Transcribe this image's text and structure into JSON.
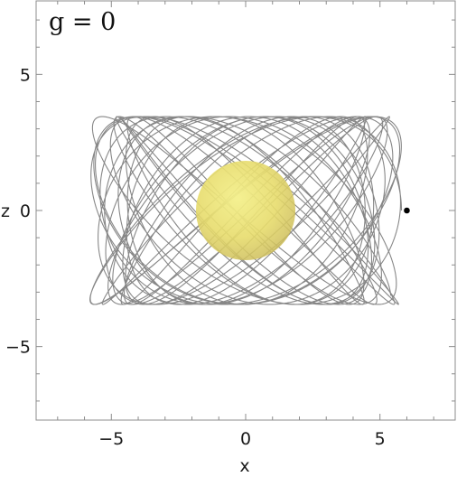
{
  "chart_data": {
    "type": "line",
    "title": "g = 0",
    "xlabel": "x",
    "ylabel": "z",
    "xlim": [
      -7.8,
      7.8
    ],
    "ylim": [
      -7.7,
      7.7
    ],
    "xticks": [
      -5,
      0,
      5
    ],
    "yticks": [
      -5,
      0,
      5
    ],
    "xtick_labels": [
      "−5",
      "0",
      "5"
    ],
    "ytick_labels": [
      "−5",
      "0",
      "5"
    ],
    "grid": false,
    "orbit": {
      "color": "#7a7a7a",
      "frequency_x": 1.0,
      "frequency_z": 1.37,
      "radius_x_range": [
        4.4,
        5.8
      ],
      "amplitude_z": 3.45,
      "turns": 26
    },
    "sphere": {
      "center": [
        0,
        0
      ],
      "radius": 1.85,
      "color": "#e6dd6a"
    },
    "current_point": {
      "x": 6.0,
      "z": 0.0,
      "color": "#000000"
    }
  }
}
